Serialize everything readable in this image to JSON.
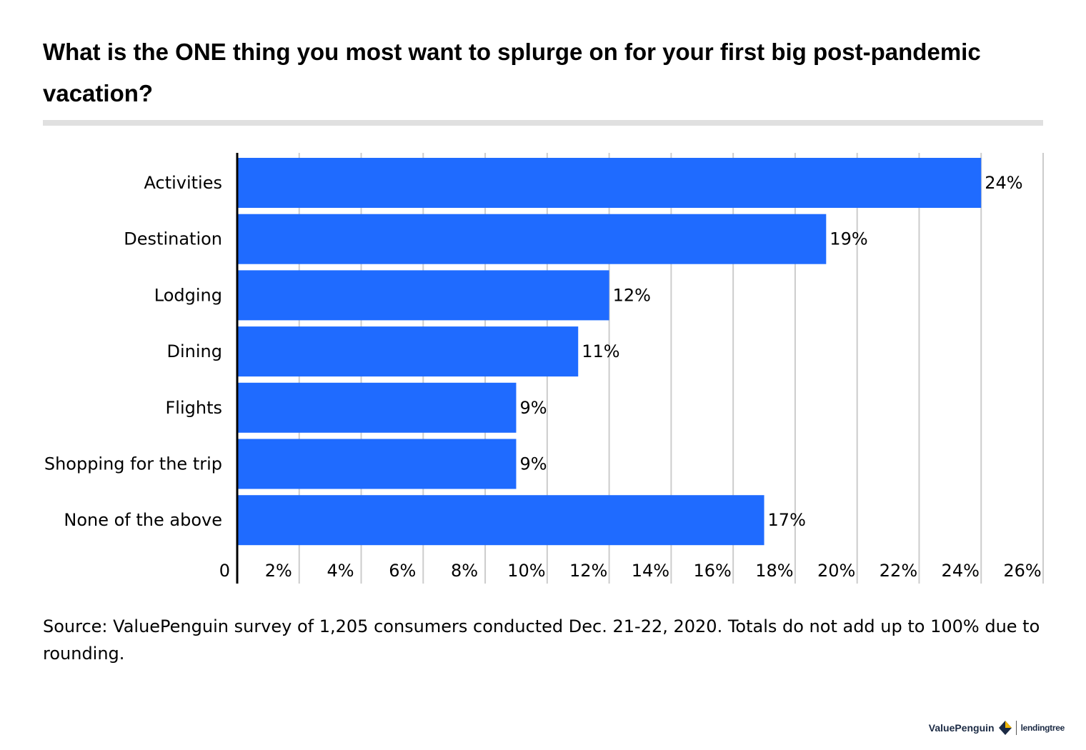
{
  "title": "What is the ONE thing you most want to splurge on for your first big post-pandemic vacation?",
  "source": "Source: ValuePenguin survey of 1,205 consumers conducted Dec. 21-22, 2020. Totals do not add up to 100% due to rounding.",
  "logo": {
    "valuepenguin": "ValuePenguin",
    "lendingtree": "lendingtree"
  },
  "colors": {
    "bar": "#1f6bff",
    "grid": "#cccccc",
    "axis": "#000000",
    "title_rule": "#e0e0e0"
  },
  "chart_data": {
    "type": "bar",
    "orientation": "horizontal",
    "categories": [
      "Activities",
      "Destination",
      "Lodging",
      "Dining",
      "Flights",
      "Shopping for the trip",
      "None of the above"
    ],
    "values": [
      24,
      19,
      12,
      11,
      9,
      9,
      17
    ],
    "value_labels": [
      "24%",
      "19%",
      "12%",
      "11%",
      "9%",
      "9%",
      "17%"
    ],
    "xlim": [
      0,
      26
    ],
    "xticks": [
      0,
      2,
      4,
      6,
      8,
      10,
      12,
      14,
      16,
      18,
      20,
      22,
      24,
      26
    ],
    "xtick_labels": [
      "0",
      "2%",
      "4%",
      "6%",
      "8%",
      "10%",
      "12%",
      "14%",
      "16%",
      "18%",
      "20%",
      "22%",
      "24%",
      "26%"
    ],
    "xlabel": "",
    "ylabel": "",
    "grid": true,
    "legend": "none"
  }
}
